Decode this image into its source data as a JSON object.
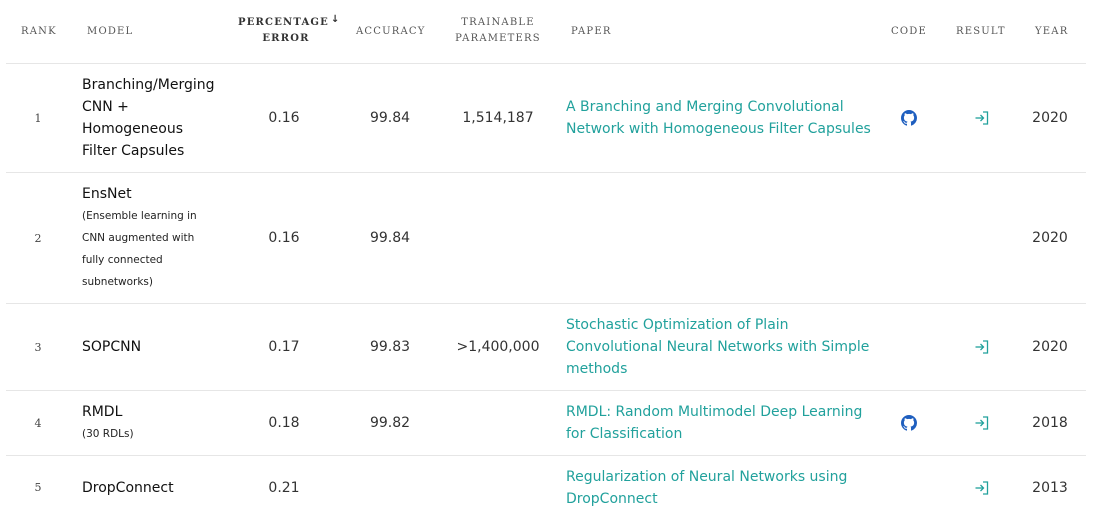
{
  "headers": {
    "rank": "RANK",
    "model": "MODEL",
    "percentage_error_line1": "PERCENTAGE",
    "percentage_error_line2": "ERROR",
    "sort_indicator": "↓",
    "accuracy": "ACCURACY",
    "params_line1": "TRAINABLE",
    "params_line2": "PARAMETERS",
    "paper": "PAPER",
    "code": "CODE",
    "result": "RESULT",
    "year": "YEAR"
  },
  "rows": [
    {
      "rank": "1",
      "model_lines": [
        "Branching/Merging",
        "CNN +",
        "Homogeneous",
        "Filter Capsules"
      ],
      "model_sub": [],
      "error": "0.16",
      "accuracy": "99.84",
      "params": "1,514,187",
      "paper_lines": [
        "A Branching and Merging Convolutional",
        "Network with Homogeneous Filter Capsules"
      ],
      "has_code": true,
      "has_result": true,
      "year": "2020"
    },
    {
      "rank": "2",
      "model_lines": [
        "EnsNet"
      ],
      "model_sub": [
        "(Ensemble learning in",
        "CNN augmented with",
        "fully connected",
        "subnetworks)"
      ],
      "error": "0.16",
      "accuracy": "99.84",
      "params": "",
      "paper_lines": [],
      "has_code": false,
      "has_result": false,
      "year": "2020"
    },
    {
      "rank": "3",
      "model_lines": [
        "SOPCNN"
      ],
      "model_sub": [],
      "error": "0.17",
      "accuracy": "99.83",
      "params": ">1,400,000",
      "paper_lines": [
        "Stochastic Optimization of Plain",
        "Convolutional Neural Networks with Simple",
        "methods"
      ],
      "has_code": false,
      "has_result": true,
      "year": "2020"
    },
    {
      "rank": "4",
      "model_lines": [
        "RMDL"
      ],
      "model_sub": [
        "(30 RDLs)"
      ],
      "error": "0.18",
      "accuracy": "99.82",
      "params": "",
      "paper_lines": [
        "RMDL: Random Multimodel Deep Learning",
        "for Classification"
      ],
      "has_code": true,
      "has_result": true,
      "year": "2018"
    },
    {
      "rank": "5",
      "model_lines": [
        "DropConnect"
      ],
      "model_sub": [],
      "error": "0.21",
      "accuracy": "",
      "params": "",
      "paper_lines": [
        "Regularization of Neural Networks using",
        "DropConnect"
      ],
      "has_code": false,
      "has_result": true,
      "year": "2013"
    }
  ],
  "colors": {
    "link": "#21a19c",
    "github_icon": "#1f5fbf",
    "result_icon": "#21a19c"
  },
  "icons": {
    "code": "github-icon",
    "result": "sign-in-icon"
  }
}
